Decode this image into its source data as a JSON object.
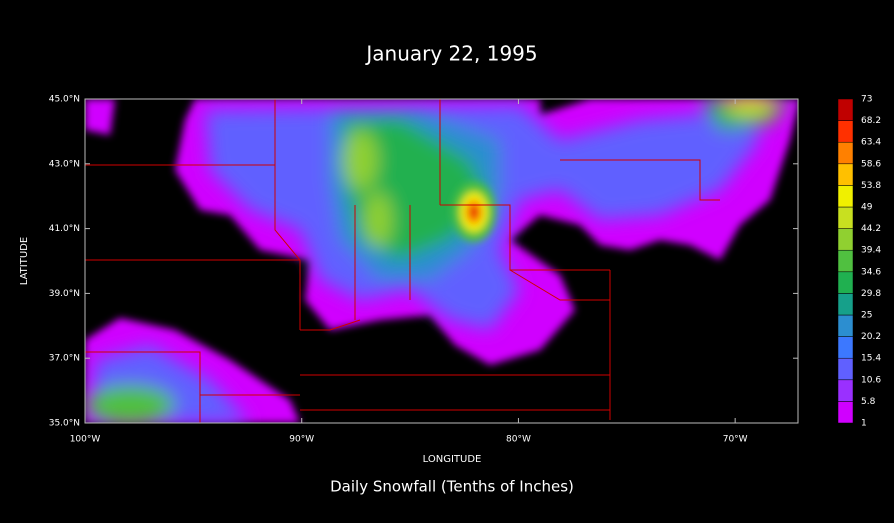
{
  "chart_data": {
    "type": "contour",
    "title": "January 22, 1995",
    "subtitle": "Daily Snowfall (Tenths of Inches)",
    "x_label": "LONGITUDE",
    "y_label": "LATITUDE",
    "xlim": [
      -100,
      -67.1
    ],
    "ylim": [
      35,
      45
    ],
    "xticks": [
      {
        "value": -100,
        "label": "100°W"
      },
      {
        "value": -90,
        "label": "90°W"
      },
      {
        "value": -80,
        "label": "80°W"
      },
      {
        "value": -70,
        "label": "70°W"
      }
    ],
    "yticks": [
      {
        "value": 35,
        "label": "35.0°N"
      },
      {
        "value": 37,
        "label": "37.0°N"
      },
      {
        "value": 39,
        "label": "39.0°N"
      },
      {
        "value": 41,
        "label": "41.0°N"
      },
      {
        "value": 43,
        "label": "43.0°N"
      },
      {
        "value": 45,
        "label": "45.0°N"
      }
    ],
    "colorbar": {
      "levels": [
        1,
        5.8,
        10.6,
        15.4,
        20.2,
        25,
        29.8,
        34.6,
        39.4,
        44.2,
        49,
        53.8,
        58.6,
        63.4,
        68.2,
        73
      ],
      "colors": [
        "#d000ff",
        "#9a30ff",
        "#6060ff",
        "#3c78ff",
        "#2c8ed0",
        "#16a08a",
        "#20b050",
        "#50c040",
        "#90d030",
        "#c8e020",
        "#f0f000",
        "#ffc000",
        "#ff8000",
        "#ff3000",
        "#c00000"
      ]
    }
  }
}
